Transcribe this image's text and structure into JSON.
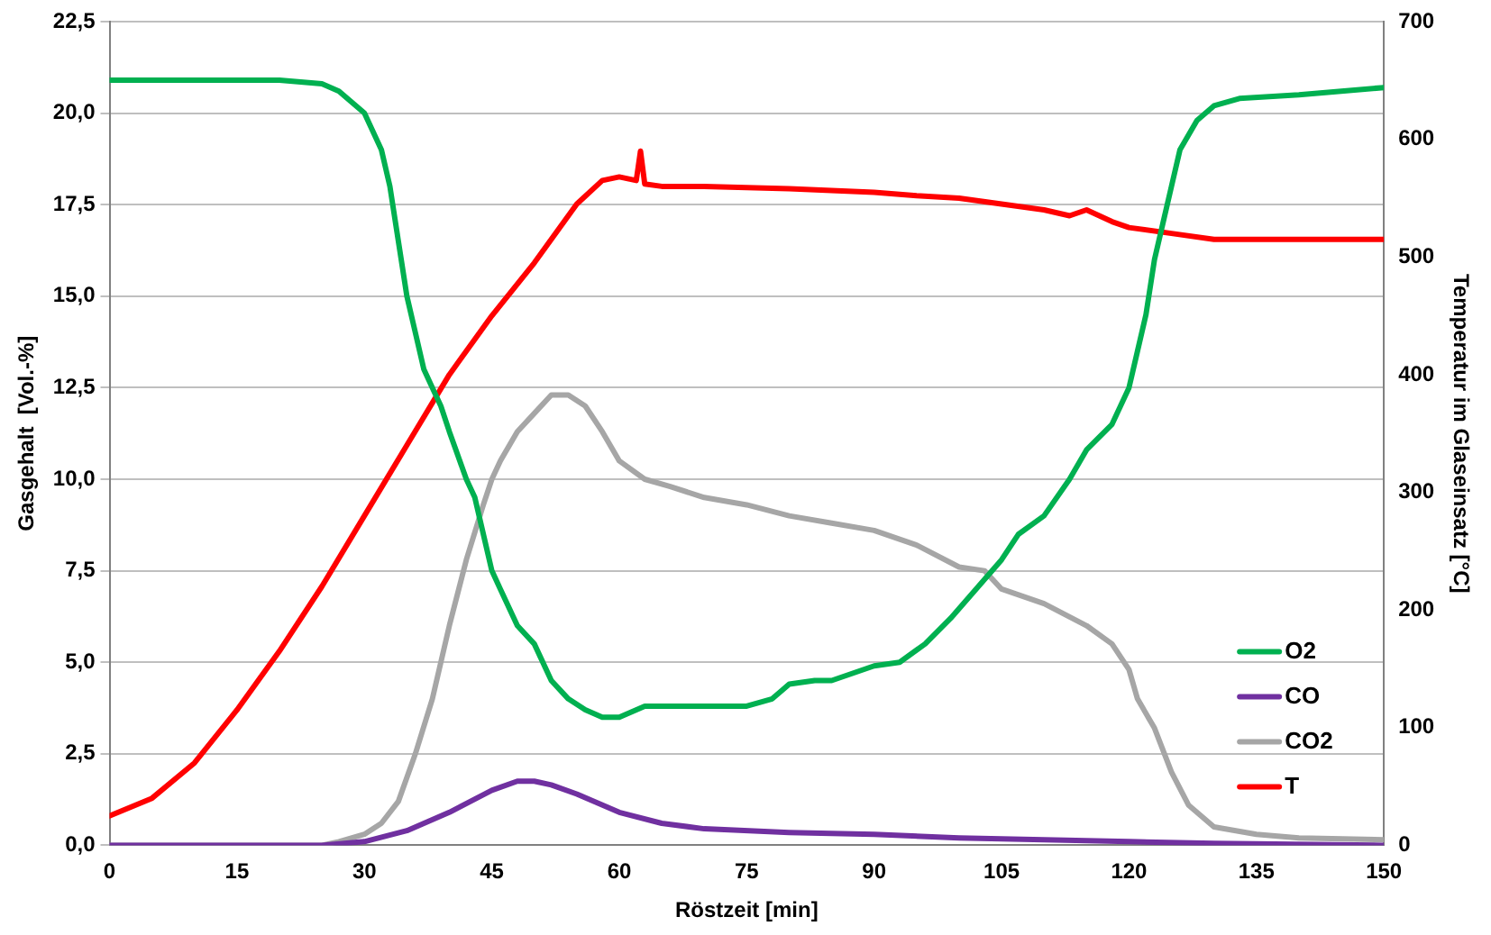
{
  "chart_data": {
    "type": "line",
    "xlabel": "Röstzeit [min]",
    "ylabel": "Gasgehalt  [Vol.-%]",
    "y2label": "Temperatur im Glaseinsatz [°C]",
    "xlim": [
      0,
      150
    ],
    "xticks": [
      0,
      15,
      30,
      45,
      60,
      75,
      90,
      105,
      120,
      135,
      150
    ],
    "ylim": [
      0,
      22.5
    ],
    "yticks": [
      {
        "value": 0,
        "label": "0,0"
      },
      {
        "value": 2.5,
        "label": "2,5"
      },
      {
        "value": 5,
        "label": "5,0"
      },
      {
        "value": 7.5,
        "label": "7,5"
      },
      {
        "value": 10,
        "label": "10,0"
      },
      {
        "value": 12.5,
        "label": "12,5"
      },
      {
        "value": 15,
        "label": "15,0"
      },
      {
        "value": 17.5,
        "label": "17,5"
      },
      {
        "value": 20,
        "label": "20,0"
      },
      {
        "value": 22.5,
        "label": "22,5"
      }
    ],
    "y2lim": [
      0,
      700
    ],
    "y2ticks": [
      0,
      100,
      200,
      300,
      400,
      500,
      600,
      700
    ],
    "grid": "y",
    "legend": "bottom right",
    "marker": "none",
    "line_style": "solid",
    "series": [
      {
        "name": "O2",
        "color": "#00b050",
        "x": [
          0,
          10,
          20,
          25,
          27,
          30,
          32,
          33,
          34,
          35,
          36,
          37,
          38,
          39,
          40,
          42,
          43,
          44,
          45,
          46,
          48,
          50,
          52,
          54,
          56,
          58,
          60,
          63,
          66,
          70,
          75,
          78,
          80,
          83,
          85,
          90,
          93,
          96,
          99,
          102,
          105,
          107,
          110,
          113,
          115,
          118,
          120,
          121,
          122,
          123,
          124,
          125,
          126,
          128,
          130,
          133,
          140,
          150
        ],
        "values": [
          20.9,
          20.9,
          20.9,
          20.8,
          20.6,
          20.0,
          19.0,
          18.0,
          16.5,
          15.0,
          14.0,
          13.0,
          12.5,
          12.0,
          11.3,
          10.0,
          9.5,
          8.5,
          7.5,
          7.0,
          6.0,
          5.5,
          4.5,
          4.0,
          3.7,
          3.5,
          3.5,
          3.8,
          3.8,
          3.8,
          3.8,
          4.0,
          4.4,
          4.5,
          4.5,
          4.9,
          5.0,
          5.5,
          6.2,
          7.0,
          7.8,
          8.5,
          9.0,
          10.0,
          10.8,
          11.5,
          12.5,
          13.5,
          14.5,
          16.0,
          17.0,
          18.0,
          19.0,
          19.8,
          20.2,
          20.4,
          20.5,
          20.7
        ]
      },
      {
        "name": "CO",
        "color": "#7030a0",
        "x": [
          0,
          25,
          30,
          35,
          40,
          45,
          48,
          50,
          52,
          55,
          60,
          65,
          70,
          80,
          90,
          100,
          110,
          120,
          130,
          150
        ],
        "values": [
          0,
          0,
          0.1,
          0.4,
          0.9,
          1.5,
          1.75,
          1.75,
          1.65,
          1.4,
          0.9,
          0.6,
          0.45,
          0.35,
          0.3,
          0.2,
          0.15,
          0.1,
          0.05,
          0
        ]
      },
      {
        "name": "CO2",
        "color": "#a6a6a6",
        "x": [
          0,
          25,
          27,
          30,
          32,
          34,
          36,
          38,
          40,
          42,
          44,
          45,
          46,
          48,
          50,
          52,
          54,
          56,
          58,
          60,
          63,
          66,
          70,
          75,
          80,
          85,
          90,
          95,
          100,
          103,
          105,
          110,
          115,
          118,
          120,
          121,
          123,
          125,
          127,
          130,
          135,
          140,
          150
        ],
        "values": [
          0,
          0,
          0.1,
          0.3,
          0.6,
          1.2,
          2.5,
          4.0,
          6.0,
          7.8,
          9.3,
          10.0,
          10.5,
          11.3,
          11.8,
          12.3,
          12.3,
          12.0,
          11.3,
          10.5,
          10.0,
          9.8,
          9.5,
          9.3,
          9.0,
          8.8,
          8.6,
          8.2,
          7.6,
          7.5,
          7.0,
          6.6,
          6.0,
          5.5,
          4.8,
          4.0,
          3.2,
          2.0,
          1.1,
          0.5,
          0.3,
          0.2,
          0.15
        ]
      },
      {
        "name": "T",
        "color": "#ff0000",
        "axis": "y2",
        "x": [
          0,
          5,
          10,
          15,
          20,
          25,
          30,
          35,
          40,
          45,
          50,
          55,
          58,
          60,
          62,
          62.5,
          63,
          65,
          70,
          80,
          90,
          95,
          100,
          105,
          110,
          113,
          115,
          118,
          120,
          125,
          130,
          140,
          150
        ],
        "values": [
          25,
          40,
          70,
          115,
          165,
          220,
          280,
          340,
          400,
          450,
          495,
          545,
          565,
          568,
          565,
          590,
          562,
          560,
          560,
          558,
          555,
          552,
          550,
          545,
          540,
          535,
          540,
          530,
          525,
          520,
          515,
          515,
          515
        ]
      }
    ]
  }
}
